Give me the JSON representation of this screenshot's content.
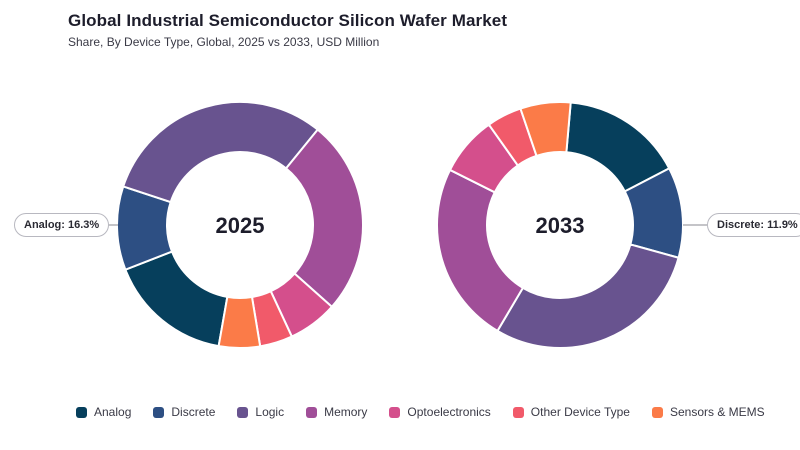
{
  "header": {
    "title": "Global Industrial Semiconductor Silicon Wafer Market",
    "subtitle": "Share, By Device Type, Global, 2025 vs 2033, USD Million"
  },
  "callouts": {
    "left": "Analog: 16.3%",
    "right": "Discrete: 11.9%"
  },
  "colors": {
    "Analog": "#063f5c",
    "Discrete": "#2d4f83",
    "Logic": "#68538f",
    "Memory": "#a04e98",
    "Optoelectronics": "#d44f8c",
    "Other Device Type": "#f15a6a",
    "Sensors & MEMS": "#fb7b48"
  },
  "chart_data": [
    {
      "type": "donut",
      "title": "2025",
      "categories": [
        "Analog",
        "Discrete",
        "Logic",
        "Memory",
        "Optoelectronics",
        "Other Device Type",
        "Sensors & MEMS"
      ],
      "values": [
        16.3,
        11.0,
        30.8,
        25.7,
        6.5,
        4.3,
        5.4
      ],
      "start_angle_deg": 190,
      "clockwise": true
    },
    {
      "type": "donut",
      "title": "2033",
      "categories": [
        "Analog",
        "Discrete",
        "Logic",
        "Memory",
        "Optoelectronics",
        "Other Device Type",
        "Sensors & MEMS"
      ],
      "values": [
        16.0,
        11.9,
        29.2,
        23.9,
        7.8,
        4.6,
        6.6
      ],
      "start_angle_deg": 5,
      "clockwise": true
    }
  ],
  "legend": [
    {
      "label": "Analog",
      "color": "#063f5c"
    },
    {
      "label": "Discrete",
      "color": "#2d4f83"
    },
    {
      "label": "Logic",
      "color": "#68538f"
    },
    {
      "label": "Memory",
      "color": "#a04e98"
    },
    {
      "label": "Optoelectronics",
      "color": "#d44f8c"
    },
    {
      "label": "Other Device Type",
      "color": "#f15a6a"
    },
    {
      "label": "Sensors & MEMS",
      "color": "#fb7b48"
    }
  ]
}
